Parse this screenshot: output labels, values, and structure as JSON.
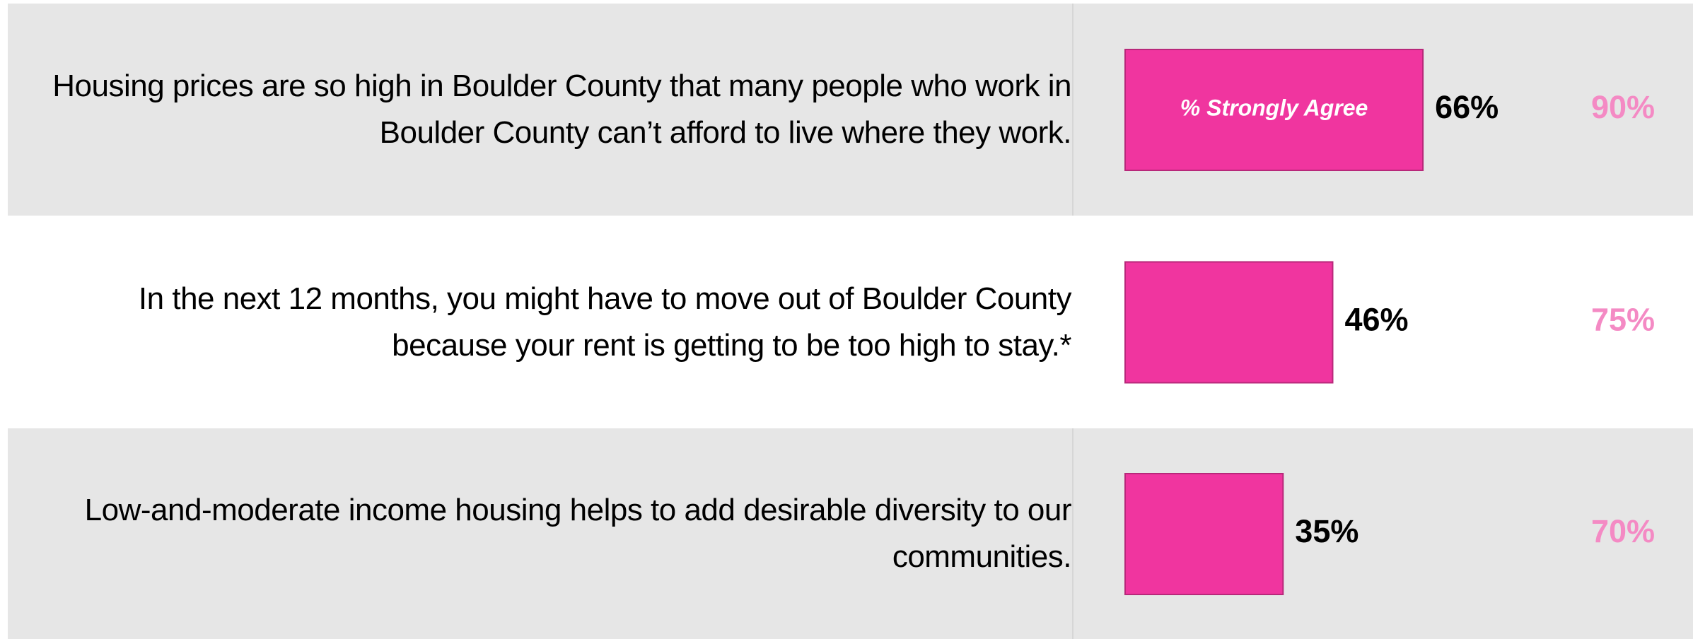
{
  "chart_data": {
    "type": "bar",
    "categories": [
      "Housing prices are so high in Boulder County that many people who work in Boulder County can’t afford to live where they work.",
      "In the next 12 months, you might have to move out of Boulder County because your rent is getting to be too high to stay.*",
      "Low-and-moderate income housing helps to add desirable diversity to our communities."
    ],
    "series": [
      {
        "name": "% Strongly Agree",
        "color": "#f0359f",
        "values": [
          66,
          46,
          35
        ],
        "value_labels": [
          "66%",
          "46%",
          "35%"
        ]
      },
      {
        "color": "#f48ac4",
        "values": [
          90,
          75,
          70
        ],
        "value_labels": [
          "90%",
          "75%",
          "70%"
        ]
      }
    ]
  }
}
